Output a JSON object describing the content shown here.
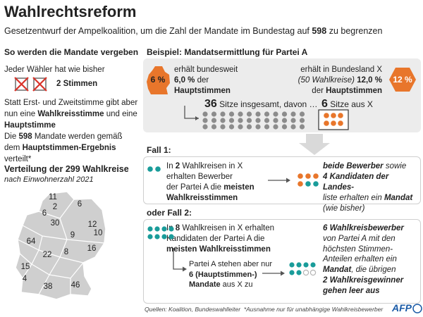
{
  "header": {
    "title": "Wahlrechtsreform",
    "subtitle": [
      "Gesetzentwurf der Ampelkoalition, um die Zahl der Mandate im Bundestag auf ",
      "598",
      " zu begrenzen"
    ]
  },
  "left": {
    "heading": "So werden die Mandate vergeben",
    "line1": "Jeder Wähler hat wie bisher",
    "votes": "2 Stimmen",
    "para1": [
      "Statt Erst- und Zweitstimme gibt aber nun eine ",
      "Wahlkreisstimme",
      " und eine ",
      "Hauptstimme"
    ],
    "para2": [
      "Die ",
      "598",
      " Mandate werden gemäß dem ",
      "Hauptstimmen-Ergebnis",
      " verteilt*"
    ]
  },
  "map": {
    "title": "Verteilung der 299 Wahlkreise",
    "subtitle": "nach Einwohnerzahl 2021",
    "states": [
      11,
      6,
      2,
      6,
      30,
      12,
      10,
      9,
      64,
      16,
      22,
      8,
      15,
      4,
      38,
      46
    ]
  },
  "example": {
    "heading": "Beispiel: Mandatsermittlung für Partei A",
    "federal_icon": "6 %",
    "federal": [
      [
        "erhält bundesweit"
      ],
      [
        "6,0 %",
        " der"
      ],
      [
        "Hauptstimmen"
      ]
    ],
    "state_icon": "12 %",
    "state": [
      [
        "erhält in Bundesland X"
      ],
      [
        "(50 Wahlkreise) ",
        "12,0 %"
      ],
      [
        "der ",
        "Hauptstimmen"
      ]
    ],
    "total_seats": [
      36,
      " Sitze insgesamt, davon …"
    ],
    "x_seats": [
      6,
      " Sitze aus X"
    ]
  },
  "case1": {
    "label": "Fall 1:",
    "text": [
      [
        "In ",
        2,
        " Wahlkreisen in X"
      ],
      [
        "erhalten Bewerber"
      ],
      [
        "der Partei A die ",
        "meisten"
      ],
      [
        "Wahlkreisstimmen"
      ]
    ],
    "result": [
      [
        "beide Bewerber",
        " sowie"
      ],
      [
        4,
        " Kandidaten der Landes-"
      ],
      [
        "liste erhalten ein ",
        "Mandat"
      ],
      [
        "(wie bisher)"
      ]
    ]
  },
  "case2": {
    "label": "oder Fall 2:",
    "text": [
      [
        "In ",
        8,
        " Wahlkreisen in X erhalten"
      ],
      [
        "Kandidaten der Partei A die"
      ],
      [
        "meisten Wahlkreisstimmen"
      ]
    ],
    "sub": [
      [
        "Partei A stehen aber nur"
      ],
      [
        6,
        " (Hauptstimmen-)"
      ],
      [
        "Mandate",
        " aus X zu"
      ]
    ],
    "result": [
      [
        6,
        " Wahlkreisbewerber"
      ],
      [
        "von Partei A mit den"
      ],
      [
        "höchsten Stimmen-"
      ],
      [
        "Anteilen erhalten ein"
      ],
      [
        "Mandat",
        ", die übrigen"
      ],
      [
        "2 Wahlkreisgewinner"
      ],
      [
        "gehen leer aus"
      ]
    ]
  },
  "footer": {
    "sources": "Quellen: Koalition, Bundeswahlleiter",
    "note": "*Ausnahme nur für unabhängige Wahlkreisbewerber",
    "logo": "AFP"
  }
}
